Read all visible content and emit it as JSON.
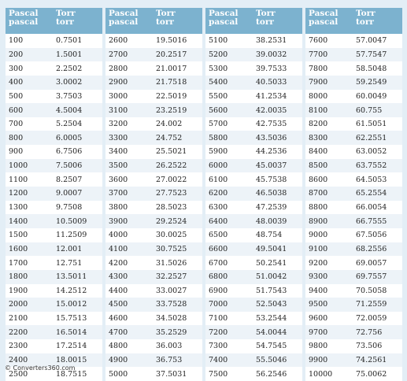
{
  "headers": {
    "col1_line1": "Pascal",
    "col1_line2": "pascal",
    "col2_line1": "Torr",
    "col2_line2": "torr"
  },
  "tables": [
    [
      [
        "100",
        "0.7501"
      ],
      [
        "200",
        "1.5001"
      ],
      [
        "300",
        "2.2502"
      ],
      [
        "400",
        "3.0002"
      ],
      [
        "500",
        "3.7503"
      ],
      [
        "600",
        "4.5004"
      ],
      [
        "700",
        "5.2504"
      ],
      [
        "800",
        "6.0005"
      ],
      [
        "900",
        "6.7506"
      ],
      [
        "1000",
        "7.5006"
      ],
      [
        "1100",
        "8.2507"
      ],
      [
        "1200",
        "9.0007"
      ],
      [
        "1300",
        "9.7508"
      ],
      [
        "1400",
        "10.5009"
      ],
      [
        "1500",
        "11.2509"
      ],
      [
        "1600",
        "12.001"
      ],
      [
        "1700",
        "12.751"
      ],
      [
        "1800",
        "13.5011"
      ],
      [
        "1900",
        "14.2512"
      ],
      [
        "2000",
        "15.0012"
      ],
      [
        "2100",
        "15.7513"
      ],
      [
        "2200",
        "16.5014"
      ],
      [
        "2300",
        "17.2514"
      ],
      [
        "2400",
        "18.0015"
      ],
      [
        "2500",
        "18.7515"
      ]
    ],
    [
      [
        "2600",
        "19.5016"
      ],
      [
        "2700",
        "20.2517"
      ],
      [
        "2800",
        "21.0017"
      ],
      [
        "2900",
        "21.7518"
      ],
      [
        "3000",
        "22.5019"
      ],
      [
        "3100",
        "23.2519"
      ],
      [
        "3200",
        "24.002"
      ],
      [
        "3300",
        "24.752"
      ],
      [
        "3400",
        "25.5021"
      ],
      [
        "3500",
        "26.2522"
      ],
      [
        "3600",
        "27.0022"
      ],
      [
        "3700",
        "27.7523"
      ],
      [
        "3800",
        "28.5023"
      ],
      [
        "3900",
        "29.2524"
      ],
      [
        "4000",
        "30.0025"
      ],
      [
        "4100",
        "30.7525"
      ],
      [
        "4200",
        "31.5026"
      ],
      [
        "4300",
        "32.2527"
      ],
      [
        "4400",
        "33.0027"
      ],
      [
        "4500",
        "33.7528"
      ],
      [
        "4600",
        "34.5028"
      ],
      [
        "4700",
        "35.2529"
      ],
      [
        "4800",
        "36.003"
      ],
      [
        "4900",
        "36.753"
      ],
      [
        "5000",
        "37.5031"
      ]
    ],
    [
      [
        "5100",
        "38.2531"
      ],
      [
        "5200",
        "39.0032"
      ],
      [
        "5300",
        "39.7533"
      ],
      [
        "5400",
        "40.5033"
      ],
      [
        "5500",
        "41.2534"
      ],
      [
        "5600",
        "42.0035"
      ],
      [
        "5700",
        "42.7535"
      ],
      [
        "5800",
        "43.5036"
      ],
      [
        "5900",
        "44.2536"
      ],
      [
        "6000",
        "45.0037"
      ],
      [
        "6100",
        "45.7538"
      ],
      [
        "6200",
        "46.5038"
      ],
      [
        "6300",
        "47.2539"
      ],
      [
        "6400",
        "48.0039"
      ],
      [
        "6500",
        "48.754"
      ],
      [
        "6600",
        "49.5041"
      ],
      [
        "6700",
        "50.2541"
      ],
      [
        "6800",
        "51.0042"
      ],
      [
        "6900",
        "51.7543"
      ],
      [
        "7000",
        "52.5043"
      ],
      [
        "7100",
        "53.2544"
      ],
      [
        "7200",
        "54.0044"
      ],
      [
        "7300",
        "54.7545"
      ],
      [
        "7400",
        "55.5046"
      ],
      [
        "7500",
        "56.2546"
      ]
    ],
    [
      [
        "7600",
        "57.0047"
      ],
      [
        "7700",
        "57.7547"
      ],
      [
        "7800",
        "58.5048"
      ],
      [
        "7900",
        "59.2549"
      ],
      [
        "8000",
        "60.0049"
      ],
      [
        "8100",
        "60.755"
      ],
      [
        "8200",
        "61.5051"
      ],
      [
        "8300",
        "62.2551"
      ],
      [
        "8400",
        "63.0052"
      ],
      [
        "8500",
        "63.7552"
      ],
      [
        "8600",
        "64.5053"
      ],
      [
        "8700",
        "65.2554"
      ],
      [
        "8800",
        "66.0054"
      ],
      [
        "8900",
        "66.7555"
      ],
      [
        "9000",
        "67.5056"
      ],
      [
        "9100",
        "68.2556"
      ],
      [
        "9200",
        "69.0057"
      ],
      [
        "9300",
        "69.7557"
      ],
      [
        "9400",
        "70.5058"
      ],
      [
        "9500",
        "71.2559"
      ],
      [
        "9600",
        "72.0059"
      ],
      [
        "9700",
        "72.756"
      ],
      [
        "9800",
        "73.506"
      ],
      [
        "9900",
        "74.2561"
      ],
      [
        "10000",
        "75.0062"
      ]
    ]
  ],
  "footer": {
    "text": "© Converters360.com"
  }
}
